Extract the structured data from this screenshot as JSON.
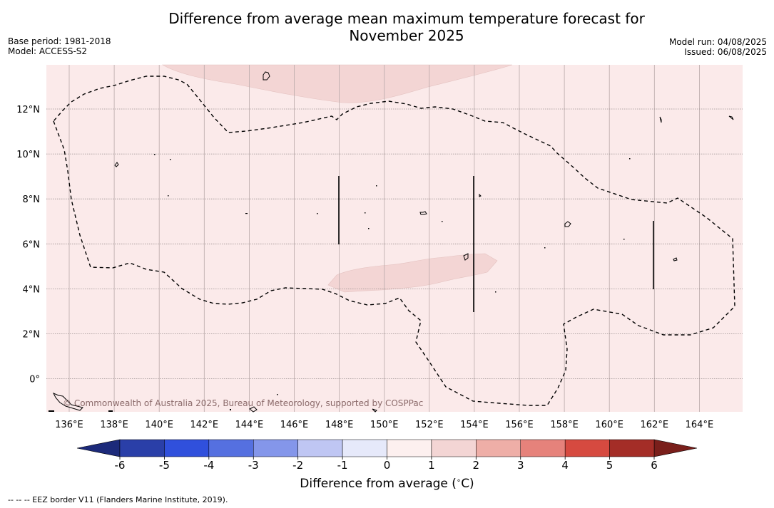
{
  "header": {
    "title": "Difference from average mean maximum temperature forecast for\nNovember 2025",
    "base_period": "Base period: 1981-2018",
    "model": "Model: ACCESS-S2",
    "model_run": "Model run: 04/08/2025",
    "issued": "Issued: 06/08/2025"
  },
  "map": {
    "copyright": "© Commonwealth of Australia 2025, Bureau of Meteorology, supported by COSPPac",
    "lon_labels": [
      "136°E",
      "138°E",
      "140°E",
      "142°E",
      "144°E",
      "146°E",
      "148°E",
      "150°E",
      "152°E",
      "154°E",
      "156°E",
      "158°E",
      "160°E",
      "162°E",
      "164°E"
    ],
    "lat_labels": [
      "12°N",
      "10°N",
      "8°N",
      "6°N",
      "4°N",
      "2°N",
      "0°"
    ],
    "background_anomaly_color": "#fbeaea",
    "warm_patch_color": "#f3d5d4"
  },
  "colorbar": {
    "label_main": "Difference from average (",
    "label_deg": "∘",
    "label_unit": "C)",
    "ticks": [
      "-6",
      "-5",
      "-4",
      "-3",
      "-2",
      "-1",
      "0",
      "1",
      "2",
      "3",
      "4",
      "5",
      "6"
    ],
    "colors": [
      "#2a3fa8",
      "#3050dc",
      "#5570e0",
      "#8496ea",
      "#bfc6f3",
      "#e6e9fa",
      "#fdf0ef",
      "#f3d5d4",
      "#eeaea7",
      "#e6827b",
      "#d64a40",
      "#a42d27"
    ],
    "under_color": "#1c2a7a",
    "over_color": "#7a1f1b"
  },
  "footer": {
    "eez_note": "--  --  -- EEZ border V11 (Flanders Marine Institute, 2019)."
  }
}
